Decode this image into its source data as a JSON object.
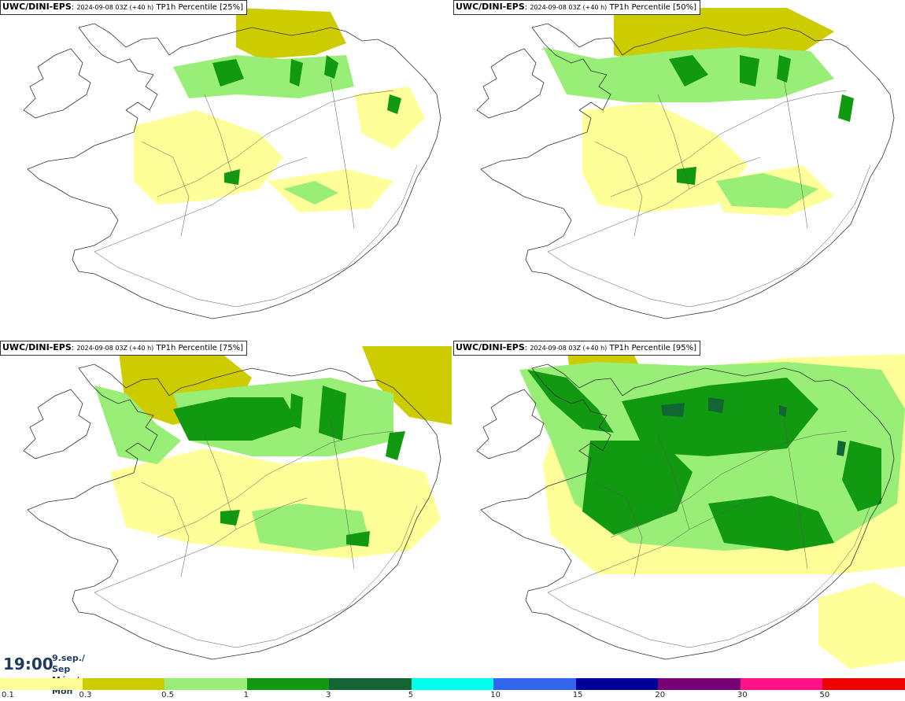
{
  "panels": [
    {
      "model": "UWC/DINI-EPS",
      "run": "2024-09-08 03Z (+40 h)",
      "field": "TP1h Percentile [25%]",
      "percentile": 25
    },
    {
      "model": "UWC/DINI-EPS",
      "run": "2024-09-08 03Z (+40 h)",
      "field": "TP1h Percentile [50%]",
      "percentile": 50
    },
    {
      "model": "UWC/DINI-EPS",
      "run": "2024-09-08 03Z (+40 h)",
      "field": "TP1h Percentile [75%]",
      "percentile": 75
    },
    {
      "model": "UWC/DINI-EPS",
      "run": "2024-09-08 03Z (+40 h)",
      "field": "TP1h Percentile [95%]",
      "percentile": 95
    }
  ],
  "valid_time": {
    "clock": "19:00",
    "date_line1": "9.sep./ Sep",
    "date_line2": "Mán./ Mon"
  },
  "colorbar": {
    "colors": [
      "#ffff99",
      "#cccc00",
      "#99ee77",
      "#119911",
      "#116633",
      "#00ffee",
      "#3366ee",
      "#000099",
      "#770077",
      "#ff1188",
      "#ee0000"
    ],
    "ticks": [
      "0.1",
      "0.3",
      "0.5",
      "1",
      "3",
      "5",
      "10",
      "15",
      "20",
      "30",
      "50"
    ]
  }
}
